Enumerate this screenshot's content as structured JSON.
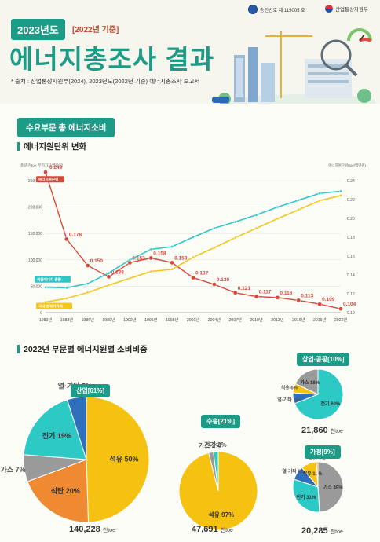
{
  "header": {
    "approval": "승인번호 제 115005 호",
    "ministry": "산업통상자원부",
    "year_badge": "2023년도",
    "year_sub": "[2022년 기준]",
    "title": "에너지총조사 결과",
    "source": "* 출처 : 산업통상자원부(2024), 2023년도(2022년 기준) 에너지총조사 보고서"
  },
  "section": {
    "tab": "수요부문 총 에너지소비",
    "sub1": "에너지원단위 변화",
    "sub2": "2022년 부문별 에너지원별 소비비중"
  },
  "chart_data": [
    {
      "type": "line",
      "ylabel_left": "총량(천toe, 부가가치/백만원)",
      "ylabel_right": "에너지원단위(toe/백만원)",
      "x": [
        "1980년",
        "1983년",
        "1986년",
        "1989년",
        "1992년",
        "1995년",
        "1998년",
        "2001년",
        "2004년",
        "2007년",
        "2010년",
        "2013년",
        "2016년",
        "2019년",
        "2022년"
      ],
      "ylim_left": [
        0,
        250000
      ],
      "ylim_right": [
        0.1,
        0.24
      ],
      "yticks_left": [
        "0",
        "50,000",
        "100,000",
        "150,000",
        "200,000",
        "250,000"
      ],
      "yticks_right": [
        "0.10",
        "0.12",
        "0.14",
        "0.16",
        "0.18",
        "0.20",
        "0.22",
        "0.24"
      ],
      "series": [
        {
          "name": "에너지원단위",
          "axis": "right",
          "color": "#d9473a",
          "x": [
            "1980년",
            "1983년",
            "1986년",
            "1989년",
            "1992년",
            "1995년",
            "1998년",
            "2001년",
            "2004년",
            "2007년",
            "2010년",
            "2013년",
            "2016년",
            "2019년",
            "2022년"
          ],
          "values": [
            0.249,
            0.178,
            0.15,
            0.138,
            0.153,
            0.158,
            0.153,
            0.137,
            0.13,
            0.121,
            0.117,
            0.116,
            0.113,
            0.109,
            0.104
          ],
          "labels": [
            "0.249",
            "0.178",
            "0.150",
            "0.138",
            "0.153",
            "0.158",
            "0.153",
            "0.137",
            "0.130",
            "0.121",
            "0.117",
            "0.116",
            "0.113",
            "0.109",
            "0.104"
          ]
        },
        {
          "name": "최종에너지 총량",
          "axis": "left",
          "color": "#2fc7c6",
          "x": [
            "1980년",
            "1983년",
            "1986년",
            "1989년",
            "1992년",
            "1995년",
            "1998년",
            "2001년",
            "2004년",
            "2007년",
            "2010년",
            "2013년",
            "2016년",
            "2019년",
            "2022년"
          ],
          "values": [
            48000,
            47000,
            55000,
            75000,
            100000,
            120000,
            125000,
            143000,
            160000,
            172000,
            185000,
            200000,
            213000,
            226000,
            230000
          ]
        },
        {
          "name": "국내 총부가가치",
          "axis": "left",
          "color": "#f3c61f",
          "x": [
            "1980년",
            "1983년",
            "1986년",
            "1989년",
            "1992년",
            "1995년",
            "1998년",
            "2001년",
            "2004년",
            "2007년",
            "2010년",
            "2013년",
            "2016년",
            "2019년",
            "2022년"
          ],
          "values": [
            20000,
            27000,
            38000,
            52000,
            65000,
            78000,
            82000,
            105000,
            123000,
            142000,
            160000,
            178000,
            195000,
            212000,
            222000
          ]
        }
      ]
    },
    {
      "type": "pie",
      "title": "산업[61%]",
      "total": "140,228",
      "unit": "천toe",
      "slices": [
        {
          "name": "석유",
          "value": 50,
          "label": "50%",
          "color": "#f5c211"
        },
        {
          "name": "석탄",
          "value": 20,
          "label": "20%",
          "color": "#f08a32"
        },
        {
          "name": "가스",
          "value": 7,
          "label": "7%",
          "color": "#9a9a9a"
        },
        {
          "name": "전기",
          "value": 19,
          "label": "19%",
          "color": "#2cc9c5"
        },
        {
          "name": "열·기타",
          "value": 5,
          "label": "5%",
          "color": "#2f6fbd"
        }
      ]
    },
    {
      "type": "pie",
      "title": "수송[21%]",
      "total": "47,691",
      "unit": "천toe",
      "slices": [
        {
          "name": "석유",
          "value": 97,
          "label": "97%",
          "color": "#f5c211"
        },
        {
          "name": "가스",
          "value": 2,
          "label": "2%",
          "color": "#9a9a9a"
        },
        {
          "name": "전기",
          "value": 2,
          "label": "2%",
          "color": "#2cc9c5"
        }
      ]
    },
    {
      "type": "pie",
      "title": "상업·공공[10%]",
      "total": "21,860",
      "unit": "천toe",
      "slices": [
        {
          "name": "전기",
          "value": 69,
          "label": "69%",
          "color": "#2cc9c5"
        },
        {
          "name": "열·기타",
          "value": 7,
          "label": "7%",
          "color": "#2f6fbd"
        },
        {
          "name": "석유",
          "value": 6,
          "label": "6%",
          "color": "#f5c211"
        },
        {
          "name": "가스",
          "value": 18,
          "label": "18%",
          "color": "#9a9a9a"
        }
      ]
    },
    {
      "type": "pie",
      "title": "가정[9%]",
      "total": "20,285",
      "unit": "천toe",
      "slices": [
        {
          "name": "가스",
          "value": 49,
          "label": "49%",
          "color": "#9a9a9a"
        },
        {
          "name": "전기",
          "value": 31,
          "label": "31%",
          "color": "#2cc9c5"
        },
        {
          "name": "열·기타",
          "value": 9,
          "label": "9%",
          "color": "#2f6fbd"
        },
        {
          "name": "석유",
          "value": 10,
          "label": "10%",
          "color": "#f5c211"
        },
        {
          "name": "석탄",
          "value": 1,
          "label": "1%",
          "color": "#f08a32"
        }
      ]
    }
  ]
}
